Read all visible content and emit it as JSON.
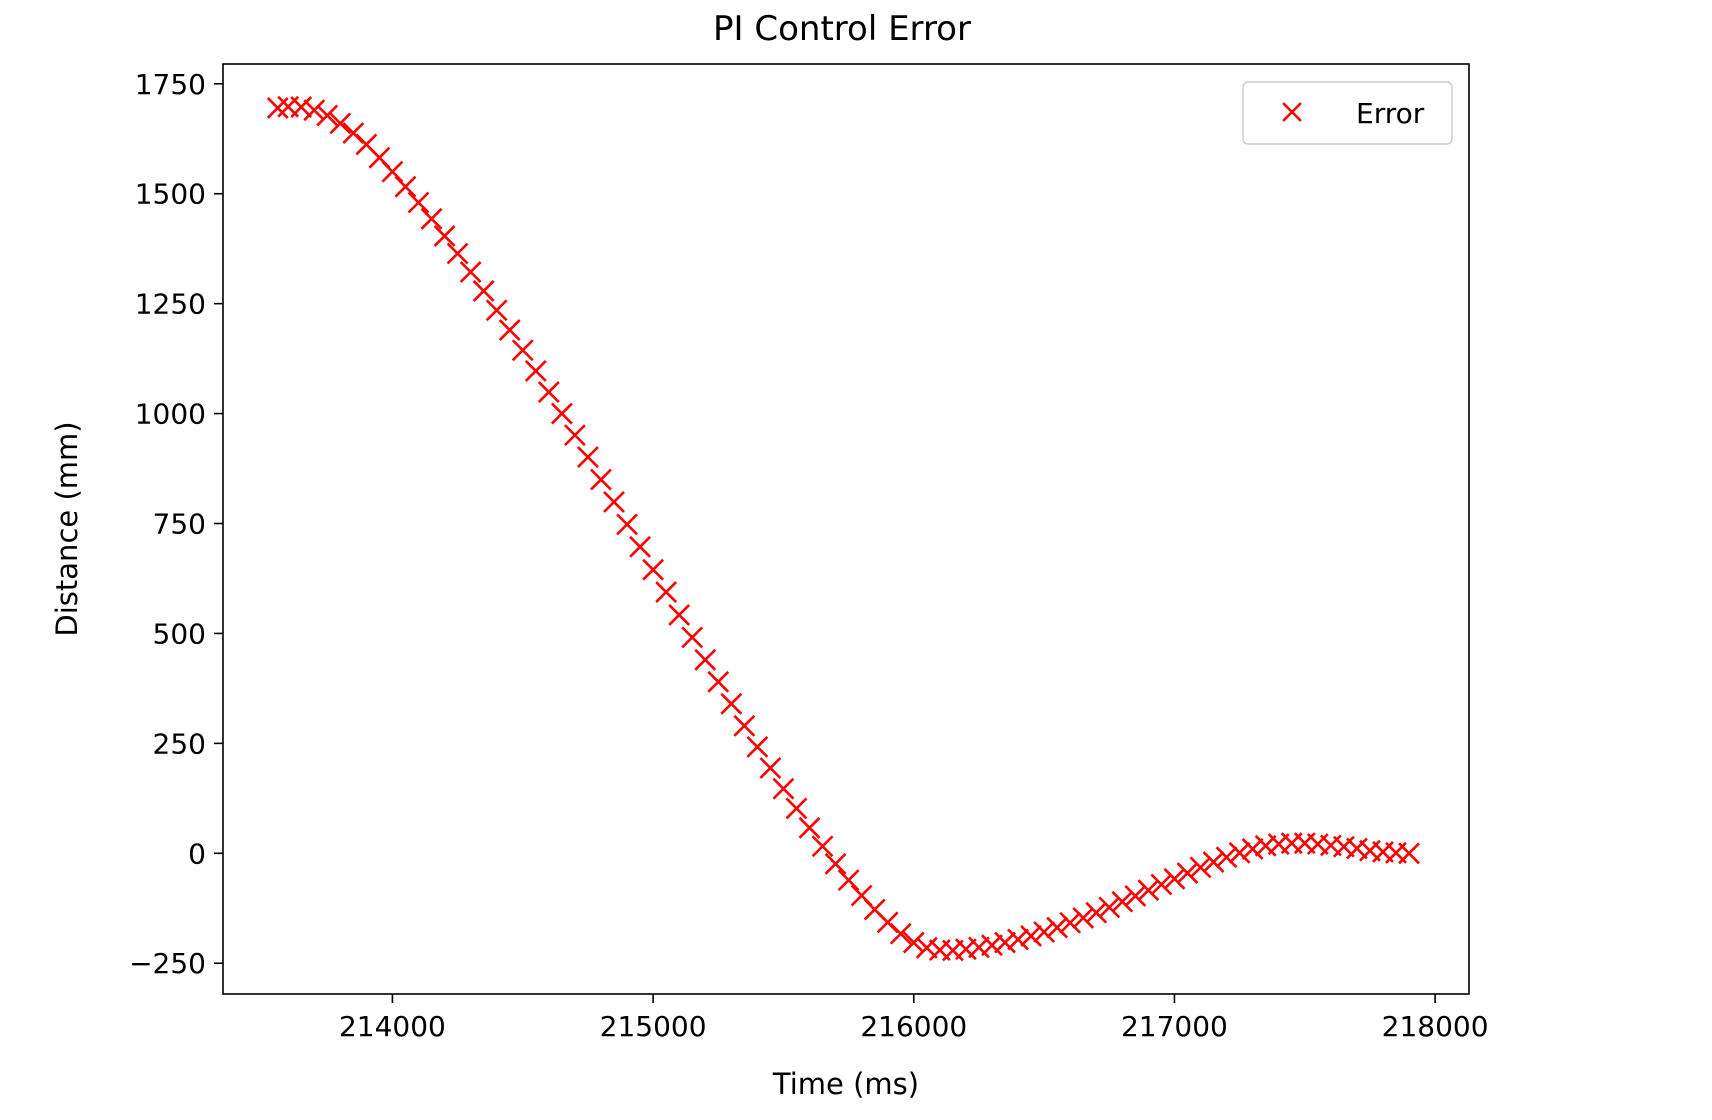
{
  "chart_data": {
    "type": "scatter",
    "title": "PI Control Error",
    "xlabel": "Time (ms)",
    "ylabel": "Distance (mm)",
    "xlim": [
      213350,
      218130
    ],
    "ylim": [
      -320,
      1795
    ],
    "xticks": [
      214000,
      215000,
      216000,
      217000,
      218000
    ],
    "xtick_labels": [
      "214000",
      "215000",
      "216000",
      "217000",
      "218000"
    ],
    "yticks": [
      -250,
      0,
      250,
      500,
      750,
      1000,
      1250,
      1500,
      1750
    ],
    "ytick_labels": [
      "−250",
      "0",
      "250",
      "500",
      "750",
      "1000",
      "1250",
      "1500",
      "1750"
    ],
    "grid": false,
    "legend_position": "upper right",
    "marker": "x",
    "series": [
      {
        "name": "Error",
        "color": "#ff0000",
        "marker": "x",
        "points": [
          [
            213560,
            1695
          ],
          [
            213600,
            1698
          ],
          [
            213650,
            1697
          ],
          [
            213700,
            1690
          ],
          [
            213750,
            1678
          ],
          [
            213800,
            1660
          ],
          [
            213850,
            1638
          ],
          [
            213900,
            1612
          ],
          [
            213950,
            1582
          ],
          [
            214000,
            1550
          ],
          [
            214050,
            1516
          ],
          [
            214100,
            1480
          ],
          [
            214150,
            1443
          ],
          [
            214200,
            1404
          ],
          [
            214250,
            1364
          ],
          [
            214300,
            1322
          ],
          [
            214350,
            1279
          ],
          [
            214400,
            1235
          ],
          [
            214450,
            1190
          ],
          [
            214500,
            1144
          ],
          [
            214550,
            1097
          ],
          [
            214600,
            1049
          ],
          [
            214650,
            1000
          ],
          [
            214700,
            951
          ],
          [
            214750,
            901
          ],
          [
            214800,
            850
          ],
          [
            214850,
            799
          ],
          [
            214900,
            748
          ],
          [
            214950,
            697
          ],
          [
            215000,
            645
          ],
          [
            215050,
            594
          ],
          [
            215100,
            542
          ],
          [
            215150,
            491
          ],
          [
            215200,
            440
          ],
          [
            215250,
            390
          ],
          [
            215300,
            340
          ],
          [
            215350,
            290
          ],
          [
            215400,
            242
          ],
          [
            215450,
            194
          ],
          [
            215500,
            147
          ],
          [
            215550,
            102
          ],
          [
            215600,
            58
          ],
          [
            215650,
            16
          ],
          [
            215700,
            -24
          ],
          [
            215750,
            -61
          ],
          [
            215800,
            -96
          ],
          [
            215850,
            -128
          ],
          [
            215900,
            -157
          ],
          [
            215950,
            -183
          ],
          [
            216000,
            -203
          ],
          [
            216050,
            -215
          ],
          [
            216100,
            -220
          ],
          [
            216150,
            -221
          ],
          [
            216200,
            -218
          ],
          [
            216250,
            -214
          ],
          [
            216300,
            -209
          ],
          [
            216350,
            -203
          ],
          [
            216400,
            -196
          ],
          [
            216450,
            -188
          ],
          [
            216500,
            -179
          ],
          [
            216550,
            -169
          ],
          [
            216600,
            -158
          ],
          [
            216650,
            -147
          ],
          [
            216700,
            -135
          ],
          [
            216750,
            -123
          ],
          [
            216800,
            -110
          ],
          [
            216850,
            -97
          ],
          [
            216900,
            -84
          ],
          [
            216950,
            -71
          ],
          [
            217000,
            -58
          ],
          [
            217050,
            -45
          ],
          [
            217100,
            -32
          ],
          [
            217150,
            -20
          ],
          [
            217200,
            -9
          ],
          [
            217250,
            1
          ],
          [
            217300,
            10
          ],
          [
            217350,
            17
          ],
          [
            217400,
            21
          ],
          [
            217450,
            23
          ],
          [
            217500,
            23
          ],
          [
            217550,
            21
          ],
          [
            217600,
            18
          ],
          [
            217650,
            15
          ],
          [
            217700,
            11
          ],
          [
            217750,
            6
          ],
          [
            217800,
            3
          ],
          [
            217850,
            1
          ],
          [
            217900,
            0
          ]
        ]
      }
    ]
  }
}
